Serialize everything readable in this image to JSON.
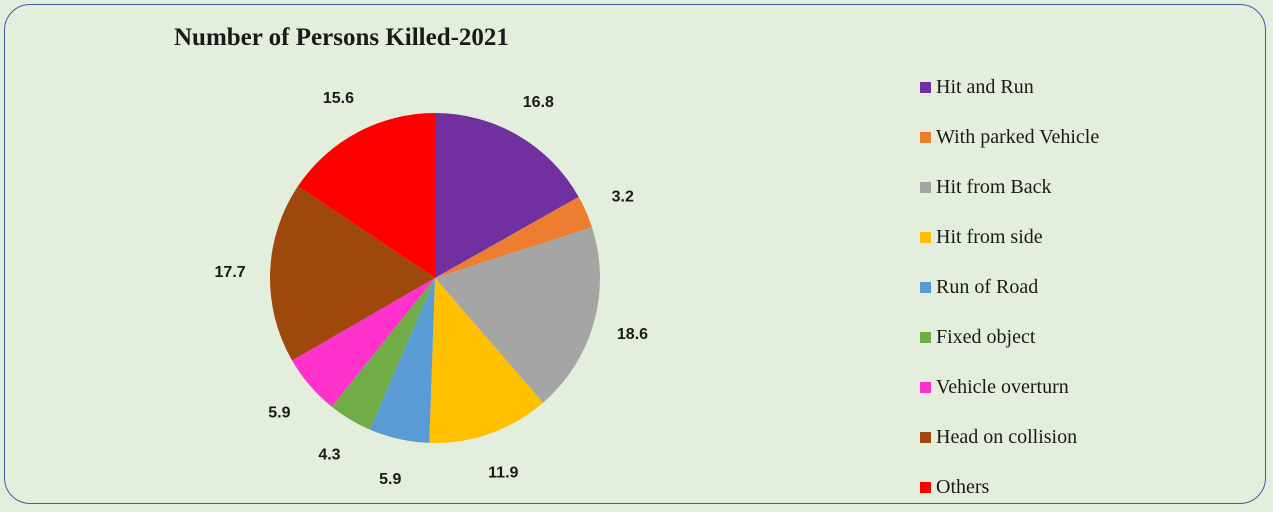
{
  "chart_data": {
    "type": "pie",
    "title": "Number of Persons Killed-2021",
    "slices": [
      {
        "label": "Hit and Run",
        "value": 16.8,
        "display": "16.8",
        "color": "#7030a0"
      },
      {
        "label": "With parked Vehicle",
        "value": 3.2,
        "display": "3.2",
        "color": "#ed7d31"
      },
      {
        "label": "Hit from Back",
        "value": 18.6,
        "display": "18.6",
        "color": "#a5a5a5"
      },
      {
        "label": "Hit from side",
        "value": 11.9,
        "display": "11.9",
        "color": "#ffc000"
      },
      {
        "label": "Run of Road",
        "value": 5.9,
        "display": "5.9",
        "color": "#5b9bd5"
      },
      {
        "label": "Fixed object",
        "value": 4.3,
        "display": "4.3",
        "color": "#70ad47"
      },
      {
        "label": "Vehicle overturn",
        "value": 5.9,
        "display": "5.9",
        "color": "#ff33cc"
      },
      {
        "label": "Head on collision",
        "value": 17.7,
        "display": "17.7",
        "color": "#9e480e"
      },
      {
        "label": "Others",
        "value": 15.6,
        "display": "15.6",
        "color": "#ff0000"
      }
    ],
    "legend_position": "right"
  }
}
